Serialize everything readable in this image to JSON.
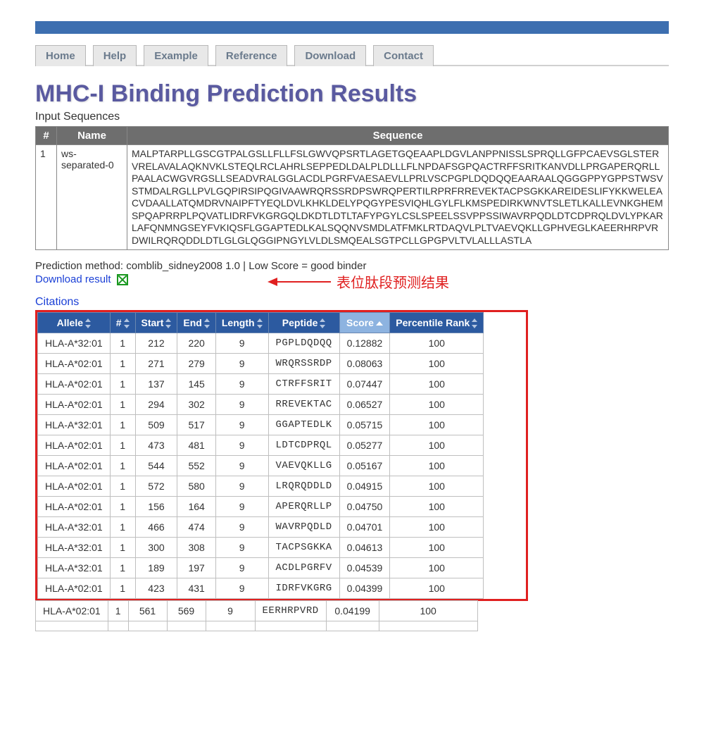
{
  "nav": {
    "tabs": [
      "Home",
      "Help",
      "Example",
      "Reference",
      "Download",
      "Contact"
    ]
  },
  "title": "MHC-I Binding Prediction Results",
  "input_sequences_label": "Input Sequences",
  "input_table": {
    "headers": {
      "idx": "#",
      "name": "Name",
      "sequence": "Sequence"
    },
    "row": {
      "idx": "1",
      "name": "ws-separated-0",
      "sequence": "MALPTARPLLGSCGTPALGSLLFLLFSLGWVQPSRTLAGETGQEAAPLDGVLANPPNISSLSPRQLLGFPCAEVSGLSTERVRELAVALAQKNVKLSTEQLRCLAHRLSEPPEDLDALPLDLLLFLNPDAFSGPQACTRFFSRITKANVDLLPRGAPERQRLLPAALACWGVRGSLLSEADVRALGGLACDLPGRFVAESAEVLLPRLVSCPGPLDQDQQEAARAALQGGGPPYGPPSTWSVSTMDALRGLLPVLGQPIRSIPQGIVAAWRQRSSRDPSWRQPERTILRPRFRREVEKTACPSGKKAREIDESLIFYKKWELEACVDAALLATQMDRVNAIPFTYEQLDVLKHKLDELYPQGYPESVIQHLGYLFLKMSPEDIRKWNVTSLETLKALLEVNKGHEMSPQAPRRPLPQVATLIDRFVKGRGQLDKDTLDTLTAFYPGYLCSLSPEELSSVPPSSIWAVRPQDLDTCDPRQLDVLYPKARLAFQNMNGSEYFVKIQSFLGGAPTEDLKALSQQNVSMDLATFMKLRTDAQVLPLTVAEVQKLLGPHVEGLKAEERHRPVRDWILRQRQDDLDTLGLGLQGGIPNGYLVLDLSMQEALSGTPCLLGPGPVLTVLALLLASTLA"
    }
  },
  "method_line": "Prediction method: comblib_sidney2008 1.0 | Low Score = good binder",
  "download_label": "Download result",
  "annotation": "表位肽段预测结果",
  "citations_label": "Citations",
  "results": {
    "headers": {
      "allele": "Allele",
      "idx": "#",
      "start": "Start",
      "end": "End",
      "length": "Length",
      "peptide": "Peptide",
      "score": "Score",
      "rank": "Percentile Rank"
    },
    "sorted_column": "score",
    "rows": [
      {
        "allele": "HLA-A*32:01",
        "idx": "1",
        "start": "212",
        "end": "220",
        "length": "9",
        "peptide": "PGPLDQDQQ",
        "score": "0.12882",
        "rank": "100"
      },
      {
        "allele": "HLA-A*02:01",
        "idx": "1",
        "start": "271",
        "end": "279",
        "length": "9",
        "peptide": "WRQRSSRDP",
        "score": "0.08063",
        "rank": "100"
      },
      {
        "allele": "HLA-A*02:01",
        "idx": "1",
        "start": "137",
        "end": "145",
        "length": "9",
        "peptide": "CTRFFSRIT",
        "score": "0.07447",
        "rank": "100"
      },
      {
        "allele": "HLA-A*02:01",
        "idx": "1",
        "start": "294",
        "end": "302",
        "length": "9",
        "peptide": "RREVEKTAC",
        "score": "0.06527",
        "rank": "100"
      },
      {
        "allele": "HLA-A*32:01",
        "idx": "1",
        "start": "509",
        "end": "517",
        "length": "9",
        "peptide": "GGAPTEDLK",
        "score": "0.05715",
        "rank": "100"
      },
      {
        "allele": "HLA-A*02:01",
        "idx": "1",
        "start": "473",
        "end": "481",
        "length": "9",
        "peptide": "LDTCDPRQL",
        "score": "0.05277",
        "rank": "100"
      },
      {
        "allele": "HLA-A*02:01",
        "idx": "1",
        "start": "544",
        "end": "552",
        "length": "9",
        "peptide": "VAEVQKLLG",
        "score": "0.05167",
        "rank": "100"
      },
      {
        "allele": "HLA-A*02:01",
        "idx": "1",
        "start": "572",
        "end": "580",
        "length": "9",
        "peptide": "LRQRQDDLD",
        "score": "0.04915",
        "rank": "100"
      },
      {
        "allele": "HLA-A*02:01",
        "idx": "1",
        "start": "156",
        "end": "164",
        "length": "9",
        "peptide": "APERQRLLP",
        "score": "0.04750",
        "rank": "100"
      },
      {
        "allele": "HLA-A*32:01",
        "idx": "1",
        "start": "466",
        "end": "474",
        "length": "9",
        "peptide": "WAVRPQDLD",
        "score": "0.04701",
        "rank": "100"
      },
      {
        "allele": "HLA-A*32:01",
        "idx": "1",
        "start": "300",
        "end": "308",
        "length": "9",
        "peptide": "TACPSGKKA",
        "score": "0.04613",
        "rank": "100"
      },
      {
        "allele": "HLA-A*32:01",
        "idx": "1",
        "start": "189",
        "end": "197",
        "length": "9",
        "peptide": "ACDLPGRFV",
        "score": "0.04539",
        "rank": "100"
      },
      {
        "allele": "HLA-A*02:01",
        "idx": "1",
        "start": "423",
        "end": "431",
        "length": "9",
        "peptide": "IDRFVKGRG",
        "score": "0.04399",
        "rank": "100"
      }
    ],
    "outside_row": {
      "allele": "HLA-A*02:01",
      "idx": "1",
      "start": "561",
      "end": "569",
      "length": "9",
      "peptide": "EERHRPVRD",
      "score": "0.04199",
      "rank": "100"
    }
  },
  "colors": {
    "header_bar": "#3d6fb0",
    "nav_text": "#6a7a8c",
    "title": "#5a5aa0",
    "table_header_bg": "#6e6e6e",
    "results_header_bg": "#2c5aa0",
    "sorted_header_bg": "#8db3e0",
    "link": "#1a3fd6",
    "annotation": "#e02020",
    "excel_green": "#1a9820"
  }
}
